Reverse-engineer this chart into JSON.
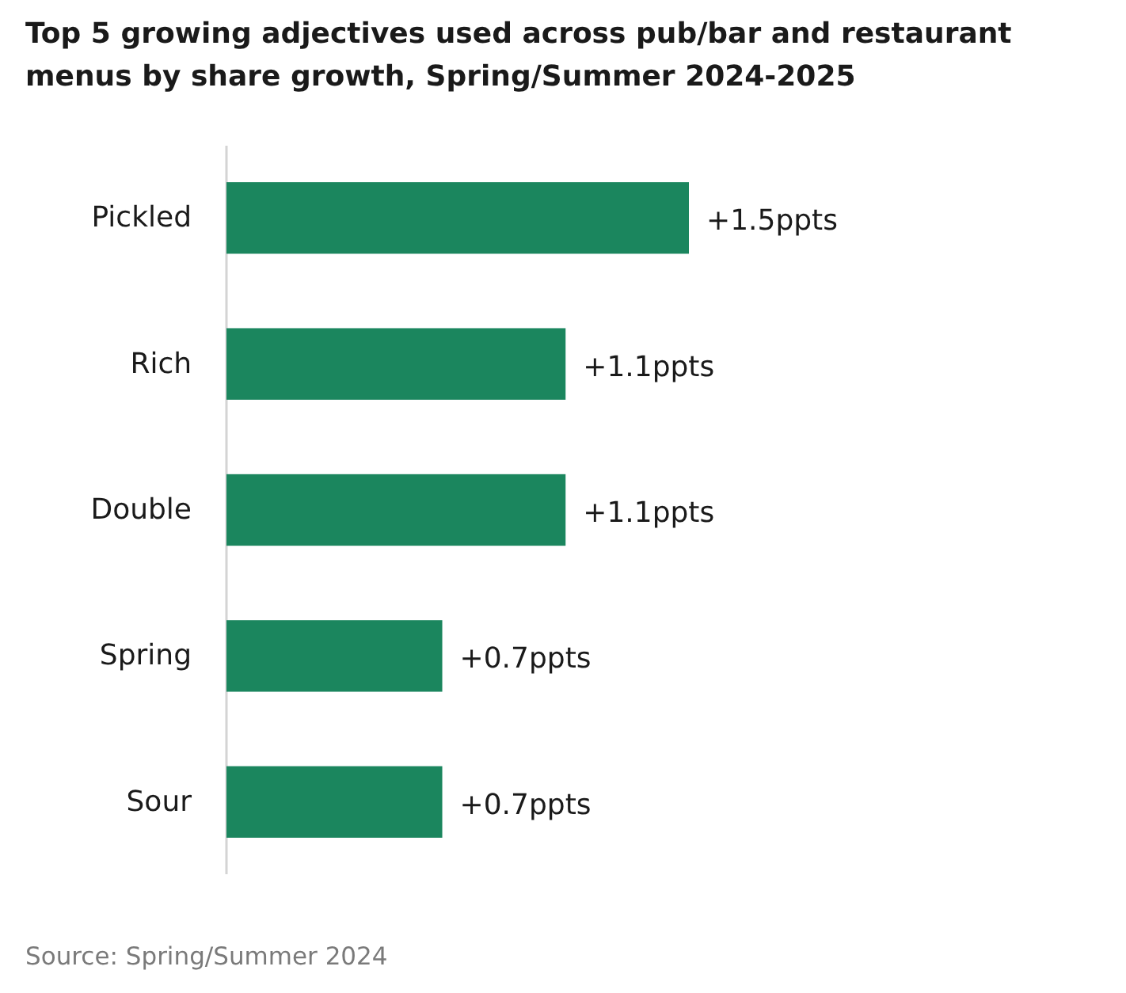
{
  "chart_data": {
    "type": "bar",
    "orientation": "horizontal",
    "title": "Top 5 growing adjectives used across pub/bar and restaurant menus by share growth, Spring/Summer 2024-2025",
    "categories": [
      "Pickled",
      "Rich",
      "Double",
      "Spring",
      "Sour"
    ],
    "values": [
      1.5,
      1.1,
      1.1,
      0.7,
      0.7
    ],
    "value_labels": [
      "+1.5ppts",
      "+1.1ppts",
      "+1.1ppts",
      "+0.7ppts",
      "+0.7ppts"
    ],
    "color": "#1b865e",
    "annotations": [
      "Source: Spring/Summer 2024"
    ]
  }
}
